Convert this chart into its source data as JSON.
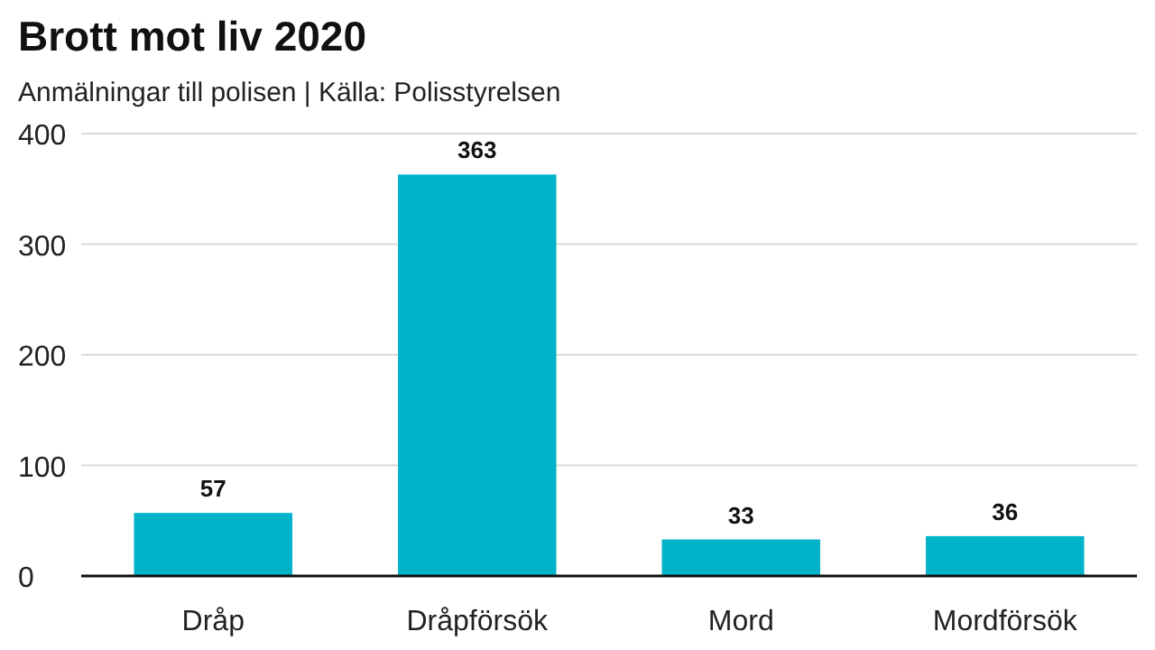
{
  "chart_data": {
    "type": "bar",
    "title": "Brott mot liv 2020",
    "subtitle": "Anmälningar till polisen | Källa: Polisstyrelsen",
    "categories": [
      "Dråp",
      "Dråpförsök",
      "Mord",
      "Mordförsök"
    ],
    "values": [
      57,
      363,
      33,
      36
    ],
    "color": "#00b3c8",
    "ylim": [
      0,
      400
    ],
    "yticks": [
      0,
      100,
      200,
      300,
      400
    ],
    "grid": "y",
    "data_labels": true
  }
}
